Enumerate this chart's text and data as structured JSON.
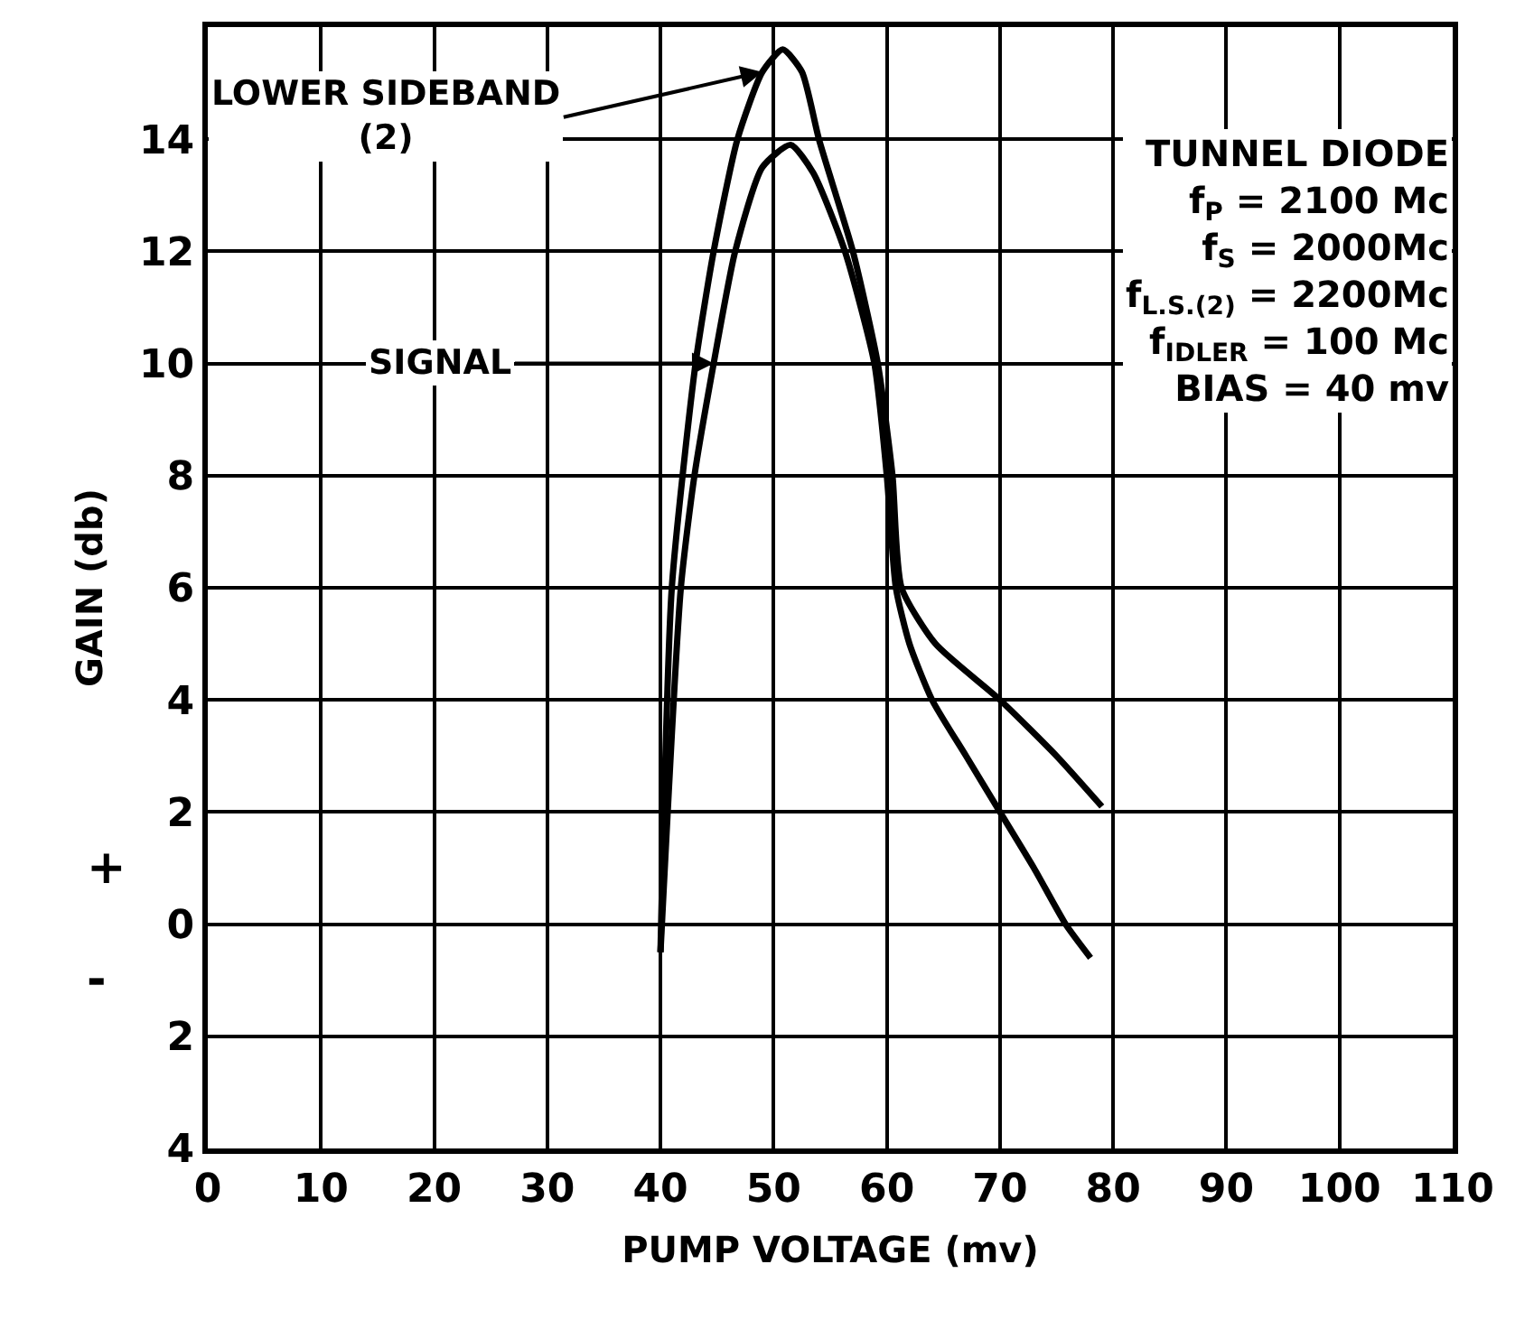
{
  "chart_data": {
    "type": "line",
    "xlabel": "PUMP VOLTAGE (mv)",
    "ylabel": "GAIN (db)",
    "xlim": [
      0,
      110
    ],
    "xticks": [
      0,
      10,
      20,
      30,
      40,
      50,
      60,
      70,
      80,
      90,
      100,
      110
    ],
    "ylim": [
      -4,
      16
    ],
    "yticks": [
      {
        "value": -4,
        "label": "4"
      },
      {
        "value": -2,
        "label": "2"
      },
      0,
      2,
      4,
      6,
      8,
      10,
      12,
      14
    ],
    "grid": true,
    "legend": false,
    "marker": "none",
    "line_style": "solid",
    "series": [
      {
        "name": "LOWER SIDEBAND (2)",
        "color": "#000000",
        "x": [
          40,
          41,
          43.1,
          44.7,
          46.8,
          49,
          50.8,
          52.5,
          54,
          57,
          59.2,
          60.5,
          61.3,
          64.3,
          70,
          75,
          79
        ],
        "values": [
          -0.5,
          6,
          10,
          12,
          14,
          15.2,
          15.6,
          15.2,
          14,
          12,
          10,
          8,
          6,
          5,
          4,
          3,
          2.1
        ]
      },
      {
        "name": "SIGNAL",
        "color": "#000000",
        "x": [
          40,
          41.8,
          43,
          44.7,
          46.6,
          49,
          51.5,
          53.5,
          56.3,
          58.9,
          60,
          60.8,
          62,
          64,
          67,
          70,
          73,
          75.8,
          78
        ],
        "values": [
          -0.5,
          6,
          8,
          10,
          12,
          13.5,
          13.9,
          13.4,
          12,
          10,
          8,
          6,
          5,
          4,
          3,
          2,
          1,
          0,
          -0.6
        ]
      }
    ],
    "annotations": [
      "+",
      "-",
      "TUNNEL DIODE",
      "f$_{P}$ = 2100 Mc",
      "f$_{S}$ = 2000Mc",
      "f$_{L.S.(2)}$ = 2200Mc",
      "f$_{IDLER}$ = 100 Mc",
      "BIAS = 40 mv"
    ]
  }
}
